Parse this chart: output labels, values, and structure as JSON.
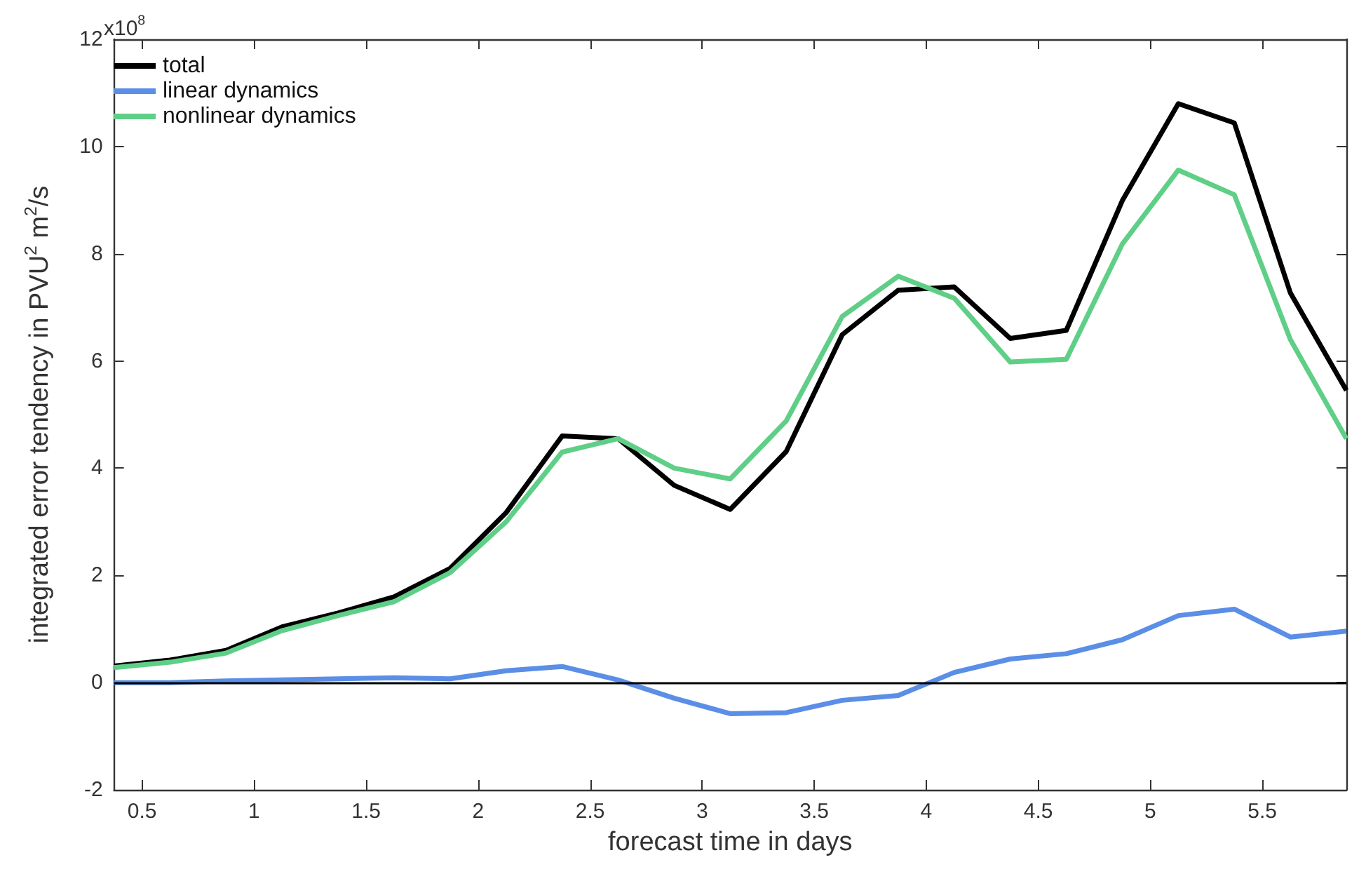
{
  "chart_data": {
    "type": "line",
    "xlabel": "forecast time in days",
    "ylabel": "integrated error tendency in PVU$^{2}$ m$^{2}$/s",
    "annotations": [
      "x10$^{8}$"
    ],
    "x": [
      0.375,
      0.625,
      0.875,
      1.125,
      1.375,
      1.625,
      1.875,
      2.125,
      2.375,
      2.625,
      2.875,
      3.125,
      3.375,
      3.625,
      3.875,
      4.125,
      4.375,
      4.625,
      4.875,
      5.125,
      5.375,
      5.625,
      5.875
    ],
    "series": [
      {
        "name": "total",
        "color": "#000000",
        "values": [
          0.31,
          0.42,
          0.6,
          1.04,
          1.3,
          1.6,
          2.13,
          3.17,
          4.6,
          4.55,
          3.68,
          3.23,
          4.31,
          6.49,
          7.32,
          7.38,
          6.42,
          6.57,
          8.99,
          10.8,
          10.44,
          7.27,
          5.45
        ]
      },
      {
        "name": "linear dynamics",
        "color": "#5b8ee6",
        "values": [
          0,
          0,
          0.03,
          0.05,
          0.07,
          0.09,
          0.07,
          0.22,
          0.3,
          0.05,
          -0.29,
          -0.58,
          -0.56,
          -0.33,
          -0.24,
          0.19,
          0.44,
          0.54,
          0.8,
          1.25,
          1.37,
          0.85,
          0.96
        ]
      },
      {
        "name": "nonlinear dynamics",
        "color": "#5fcf87",
        "values": [
          0.28,
          0.38,
          0.55,
          0.97,
          1.25,
          1.51,
          2.05,
          3.0,
          4.3,
          4.55,
          4.0,
          3.8,
          4.88,
          6.83,
          7.58,
          7.17,
          5.98,
          6.03,
          8.18,
          9.56,
          9.1,
          6.4,
          4.55
        ]
      }
    ],
    "xlim": [
      0.375,
      5.875
    ],
    "xticks": [
      0.5,
      1,
      1.5,
      2,
      2.5,
      3,
      3.5,
      4,
      4.5,
      5,
      5.5
    ],
    "ylim": [
      -2,
      12
    ],
    "yticks": [
      -2,
      0,
      2,
      4,
      6,
      8,
      10,
      12
    ],
    "ref_lines": [
      {
        "axis": "y",
        "value": 0,
        "color": "#000000"
      }
    ],
    "grid": false,
    "legend": "top left",
    "marker": "none",
    "line_style": "solid"
  }
}
